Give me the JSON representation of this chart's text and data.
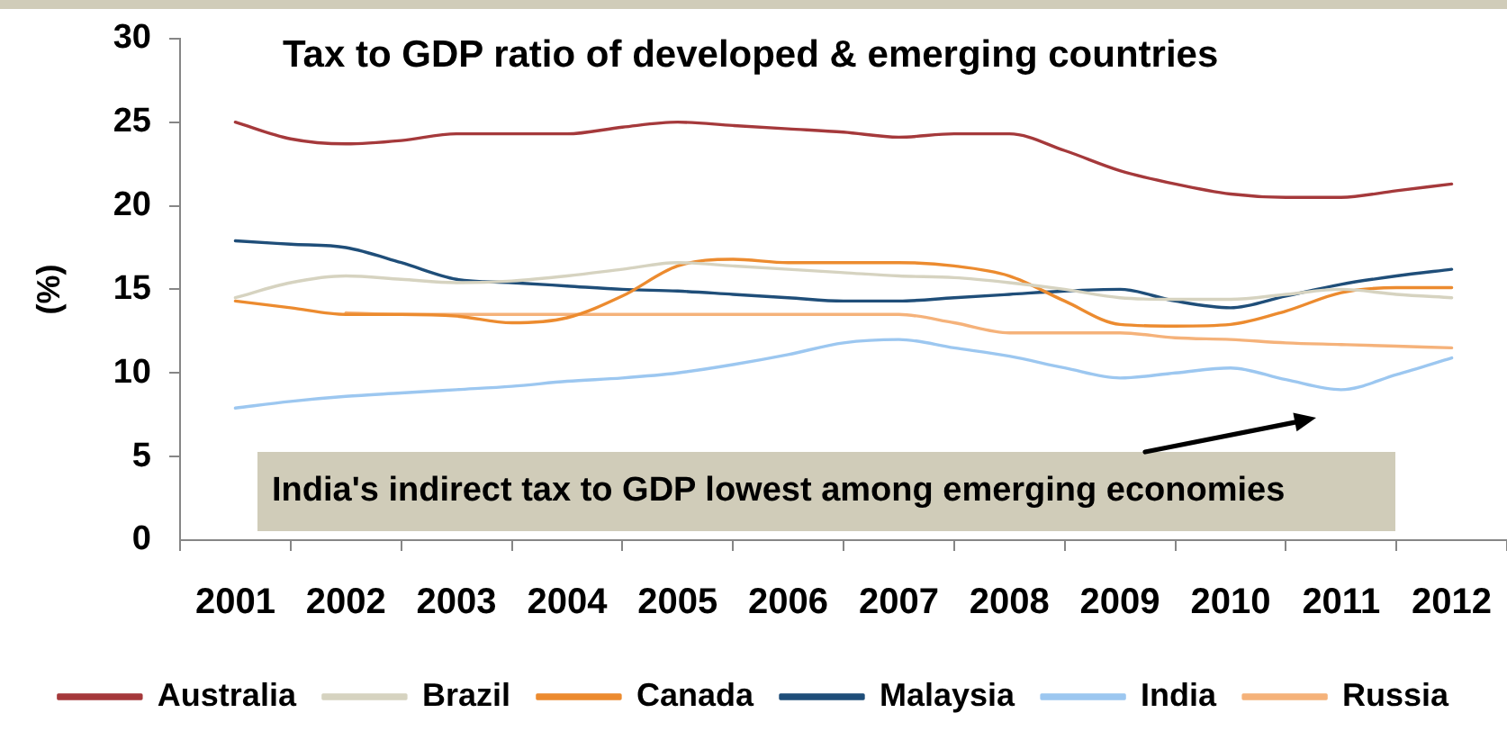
{
  "chart_data": {
    "type": "line",
    "title": "Tax to GDP ratio of developed & emerging countries",
    "ylabel": "(%)",
    "x": [
      2001,
      2001.5,
      2002,
      2002.5,
      2003,
      2003.5,
      2004,
      2004.5,
      2005,
      2005.5,
      2006,
      2006.5,
      2007,
      2007.5,
      2008,
      2008.5,
      2009,
      2009.5,
      2010,
      2010.5,
      2011,
      2011.5,
      2012
    ],
    "xlim": [
      2000.5,
      2012.5
    ],
    "xticks": [
      {
        "value": 2000.5,
        "label": null
      },
      2001,
      {
        "value": 2001.5,
        "label": null
      },
      2002,
      {
        "value": 2002.5,
        "label": null
      },
      2003,
      {
        "value": 2003.5,
        "label": null
      },
      2004,
      {
        "value": 2004.5,
        "label": null
      },
      2005,
      {
        "value": 2005.5,
        "label": null
      },
      2006,
      {
        "value": 2006.5,
        "label": null
      },
      2007,
      {
        "value": 2007.5,
        "label": null
      },
      2008,
      {
        "value": 2008.5,
        "label": null
      },
      2009,
      {
        "value": 2009.5,
        "label": null
      },
      2010,
      {
        "value": 2010.5,
        "label": null
      },
      2011,
      {
        "value": 2011.5,
        "label": null
      },
      2012,
      {
        "value": 2012.5,
        "label": null
      }
    ],
    "ylim": [
      0,
      30
    ],
    "yticks": [
      0,
      5,
      10,
      15,
      20,
      25,
      30
    ],
    "grid": false,
    "legend": "bottom",
    "marker": "none",
    "line_style": "solid",
    "annotations": [
      "India's indirect tax to GDP lowest among emerging economies"
    ],
    "series": [
      {
        "name": "Australia",
        "color": "#a5393b",
        "values": [
          25.0,
          24.0,
          23.7,
          23.9,
          24.3,
          24.3,
          24.3,
          24.7,
          25.0,
          24.8,
          24.6,
          24.4,
          24.1,
          24.3,
          24.3,
          23.3,
          22.1,
          21.3,
          20.7,
          20.5,
          20.5,
          20.9,
          21.3
        ]
      },
      {
        "name": "Brazil",
        "color": "#d6d3c0",
        "values": [
          14.5,
          15.4,
          15.8,
          15.6,
          15.4,
          15.5,
          15.8,
          16.2,
          16.6,
          16.4,
          16.2,
          16.0,
          15.8,
          15.7,
          15.4,
          15.0,
          14.5,
          14.4,
          14.4,
          14.7,
          15.0,
          14.7,
          14.5
        ]
      },
      {
        "name": "Canada",
        "color": "#ec8b2f",
        "values": [
          14.3,
          13.9,
          13.5,
          13.5,
          13.4,
          13.0,
          13.3,
          14.6,
          16.4,
          16.8,
          16.6,
          16.6,
          16.6,
          16.4,
          15.8,
          14.3,
          12.9,
          12.8,
          12.9,
          13.7,
          14.8,
          15.1,
          15.1
        ]
      },
      {
        "name": "Malaysia",
        "color": "#1f4e79",
        "values": [
          17.9,
          17.7,
          17.5,
          16.6,
          15.6,
          15.4,
          15.2,
          15.0,
          14.9,
          14.7,
          14.5,
          14.3,
          14.3,
          14.5,
          14.7,
          14.9,
          15.0,
          14.3,
          13.9,
          14.6,
          15.3,
          15.8,
          16.2
        ]
      },
      {
        "name": "India",
        "color": "#9cc7f0",
        "values": [
          7.9,
          8.3,
          8.6,
          8.8,
          9.0,
          9.2,
          9.5,
          9.7,
          10.0,
          10.5,
          11.1,
          11.8,
          12.0,
          11.5,
          11.0,
          10.3,
          9.7,
          10.0,
          10.3,
          9.6,
          9.0,
          9.9,
          10.9
        ]
      },
      {
        "name": "Russia",
        "color": "#f5b27a",
        "values": [
          null,
          null,
          13.6,
          13.5,
          13.5,
          13.5,
          13.5,
          13.5,
          13.5,
          13.5,
          13.5,
          13.5,
          13.5,
          13.0,
          12.4,
          12.4,
          12.4,
          12.1,
          12.0,
          11.8,
          11.7,
          11.6,
          11.5
        ]
      }
    ]
  }
}
